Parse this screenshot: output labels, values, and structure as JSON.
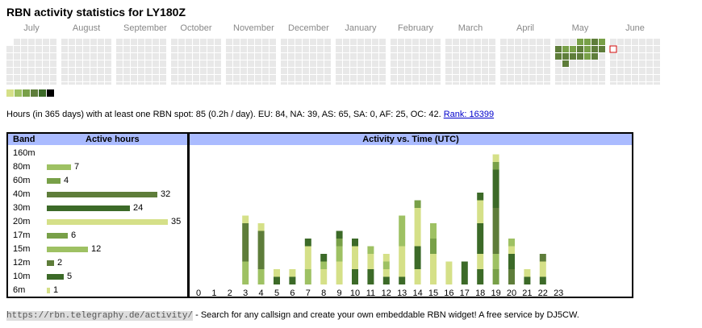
{
  "title": "RBN activity statistics for LY180Z",
  "months": [
    "July",
    "August",
    "September",
    "October",
    "November",
    "December",
    "January",
    "February",
    "March",
    "April",
    "May",
    "June"
  ],
  "legend_colors": [
    "#d5e088",
    "#9ec163",
    "#78a048",
    "#5e7d3a",
    "#3c6a28",
    "#000000"
  ],
  "summary": {
    "text": "Hours (in 365 days) with at least one RBN spot: 85 (0.2h / day). EU: 84, NA: 39, AS: 65, SA: 0, AF: 25, OC: 42.",
    "rank_label": "Rank: 16399"
  },
  "band_table": {
    "header_band": "Band",
    "header_hours": "Active hours",
    "rows": [
      {
        "band": "160m",
        "hours": null,
        "color": "#9ec163"
      },
      {
        "band": "80m",
        "hours": 7,
        "color": "#9ec163"
      },
      {
        "band": "60m",
        "hours": 4,
        "color": "#78a048"
      },
      {
        "band": "40m",
        "hours": 32,
        "color": "#5e7d3a"
      },
      {
        "band": "30m",
        "hours": 24,
        "color": "#3c6a28"
      },
      {
        "band": "20m",
        "hours": 35,
        "color": "#d5e088"
      },
      {
        "band": "17m",
        "hours": 6,
        "color": "#78a048"
      },
      {
        "band": "15m",
        "hours": 12,
        "color": "#9ec163"
      },
      {
        "band": "12m",
        "hours": 2,
        "color": "#5e7d3a"
      },
      {
        "band": "10m",
        "hours": 5,
        "color": "#3c6a28"
      },
      {
        "band": "6m",
        "hours": 1,
        "color": "#d5e088"
      }
    ]
  },
  "chart_data": {
    "type": "bar",
    "title": "Activity vs. Time (UTC)",
    "categories": [
      "0",
      "1",
      "2",
      "3",
      "4",
      "5",
      "6",
      "7",
      "8",
      "9",
      "10",
      "11",
      "12",
      "13",
      "14",
      "15",
      "16",
      "17",
      "18",
      "19",
      "20",
      "21",
      "22",
      "23"
    ],
    "series_colors": {
      "20m": "#d5e088",
      "15m": "#9ec163",
      "17m": "#78a048",
      "40m": "#5e7d3a",
      "30m": "#3c6a28",
      "80m": "#9ec163"
    },
    "stacks": [
      [],
      [],
      [],
      [
        {
          "band": "15m",
          "value": 3
        },
        {
          "band": "40m",
          "value": 5
        },
        {
          "band": "20m",
          "value": 1
        }
      ],
      [
        {
          "band": "15m",
          "value": 2
        },
        {
          "band": "40m",
          "value": 5
        },
        {
          "band": "20m",
          "value": 1
        }
      ],
      [
        {
          "band": "30m",
          "value": 1
        },
        {
          "band": "20m",
          "value": 1
        }
      ],
      [
        {
          "band": "30m",
          "value": 1
        },
        {
          "band": "20m",
          "value": 1
        }
      ],
      [
        {
          "band": "15m",
          "value": 2
        },
        {
          "band": "20m",
          "value": 3
        },
        {
          "band": "30m",
          "value": 1
        }
      ],
      [
        {
          "band": "20m",
          "value": 2
        },
        {
          "band": "15m",
          "value": 1
        },
        {
          "band": "30m",
          "value": 1
        }
      ],
      [
        {
          "band": "20m",
          "value": 3
        },
        {
          "band": "15m",
          "value": 2
        },
        {
          "band": "17m",
          "value": 1
        },
        {
          "band": "30m",
          "value": 1
        }
      ],
      [
        {
          "band": "30m",
          "value": 2
        },
        {
          "band": "20m",
          "value": 3
        },
        {
          "band": "30m",
          "value": 1
        }
      ],
      [
        {
          "band": "30m",
          "value": 2
        },
        {
          "band": "20m",
          "value": 2
        },
        {
          "band": "15m",
          "value": 1
        }
      ],
      [
        {
          "band": "30m",
          "value": 1
        },
        {
          "band": "20m",
          "value": 1
        },
        {
          "band": "15m",
          "value": 1
        },
        {
          "band": "20m",
          "value": 1
        }
      ],
      [
        {
          "band": "30m",
          "value": 1
        },
        {
          "band": "20m",
          "value": 4
        },
        {
          "band": "15m",
          "value": 4
        }
      ],
      [
        {
          "band": "20m",
          "value": 2
        },
        {
          "band": "30m",
          "value": 3
        },
        {
          "band": "20m",
          "value": 5
        },
        {
          "band": "17m",
          "value": 1
        }
      ],
      [
        {
          "band": "20m",
          "value": 4
        },
        {
          "band": "17m",
          "value": 2
        },
        {
          "band": "15m",
          "value": 2
        }
      ],
      [
        {
          "band": "20m",
          "value": 3
        }
      ],
      [
        {
          "band": "30m",
          "value": 3
        }
      ],
      [
        {
          "band": "30m",
          "value": 2
        },
        {
          "band": "20m",
          "value": 2
        },
        {
          "band": "30m",
          "value": 4
        },
        {
          "band": "20m",
          "value": 3
        },
        {
          "band": "30m",
          "value": 1
        }
      ],
      [
        {
          "band": "17m",
          "value": 2
        },
        {
          "band": "15m",
          "value": 2
        },
        {
          "band": "40m",
          "value": 6
        },
        {
          "band": "30m",
          "value": 5
        },
        {
          "band": "17m",
          "value": 1
        },
        {
          "band": "20m",
          "value": 1
        }
      ],
      [
        {
          "band": "40m",
          "value": 2
        },
        {
          "band": "30m",
          "value": 2
        },
        {
          "band": "20m",
          "value": 1
        },
        {
          "band": "15m",
          "value": 1
        }
      ],
      [
        {
          "band": "30m",
          "value": 1
        },
        {
          "band": "20m",
          "value": 1
        }
      ],
      [
        {
          "band": "30m",
          "value": 1
        },
        {
          "band": "20m",
          "value": 2
        },
        {
          "band": "40m",
          "value": 1
        }
      ],
      []
    ]
  },
  "footer": {
    "url": "https://rbn.telegraphy.de/activity/",
    "text": " - Search for any callsign and create your own embeddable RBN widget! A free service by DJ5CW."
  }
}
